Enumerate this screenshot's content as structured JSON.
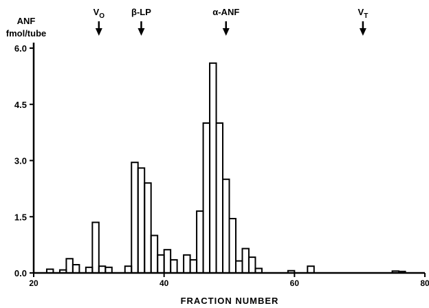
{
  "chart_data": {
    "type": "bar",
    "title": "",
    "ylabel": "ANF",
    "ylabel_line2": "fmol/tube",
    "xlabel": "FRACTION NUMBER",
    "xlim": [
      20,
      80
    ],
    "ylim": [
      0,
      6.0
    ],
    "xticks": [
      "20",
      "40",
      "60",
      "80"
    ],
    "xtick_values": [
      20,
      40,
      60,
      80
    ],
    "yticks": [
      "0.0",
      "1.5",
      "3.0",
      "4.5",
      "6.0"
    ],
    "ytick_values": [
      0,
      1.5,
      3.0,
      4.5,
      6.0
    ],
    "series": [
      {
        "x": [
          21,
          22,
          23,
          24,
          25,
          26,
          27,
          28,
          29,
          30,
          31,
          32,
          33,
          34,
          35,
          36,
          37,
          38,
          39,
          40,
          41,
          42,
          43,
          44,
          45,
          46,
          47,
          48,
          49,
          50,
          51,
          52,
          53,
          54,
          55,
          56,
          57,
          58,
          59,
          60,
          61,
          62,
          63,
          64,
          65,
          66,
          67,
          68,
          69,
          70,
          71,
          72,
          73,
          74,
          75,
          76,
          77,
          78,
          79,
          80
        ],
        "values": [
          0,
          0,
          0.1,
          0,
          0.08,
          0.38,
          0.22,
          0,
          0.15,
          1.35,
          0.18,
          0.15,
          0,
          0,
          0.18,
          2.95,
          2.8,
          2.4,
          1.0,
          0.48,
          0.62,
          0.35,
          0,
          0.48,
          0.35,
          1.65,
          4.0,
          5.6,
          4.0,
          2.5,
          1.45,
          0.32,
          0.65,
          0.42,
          0.12,
          0,
          0,
          0,
          0,
          0.06,
          0,
          0,
          0.18,
          0,
          0,
          0,
          0,
          0,
          0,
          0,
          0,
          0,
          0,
          0,
          0,
          0.05,
          0.04,
          0,
          0,
          0
        ]
      }
    ],
    "annotations": [
      {
        "text": "V",
        "sub": "O",
        "x": 30
      },
      {
        "text": "β-LP",
        "x": 36.5
      },
      {
        "text": "α-ANF",
        "x": 49.5
      },
      {
        "text": "V",
        "sub": "T",
        "x": 70.5
      }
    ]
  }
}
